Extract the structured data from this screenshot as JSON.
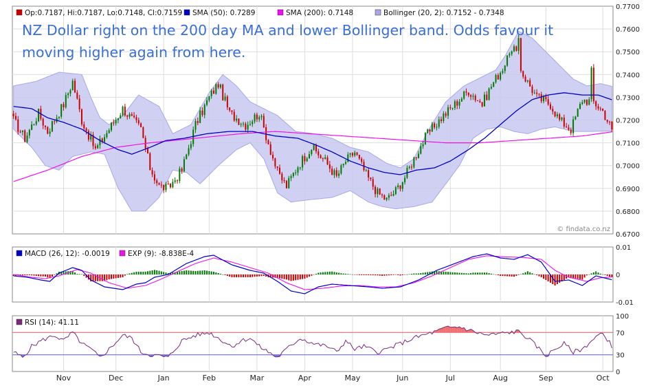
{
  "source": "© findata.co.nz",
  "annotation_lines": [
    "NZ Dollar right on the 200 day MA and lower Bollinger band. Odds favour it",
    "moving higher again from here."
  ],
  "colors": {
    "up": "#007a00",
    "down": "#cc0000",
    "sma50": "#0000c8",
    "sma200": "#ee10ee",
    "bollinger_fill": "#c8c8f0",
    "bollinger_line": "#a8a8e8",
    "annotation": "#3a6fd6",
    "rsi_line": "#7a2a7a",
    "rsi_overbought_fill": "#f07070",
    "rsi_oversold_fill": "#7070ee",
    "macd_line": "#0000c8",
    "signal_line": "#ee10ee",
    "grid": "#dddddd"
  },
  "chart_data": [
    {
      "type": "candlestick",
      "legend": [
        {
          "label": "Op:0.7187, Hi:0.7187, Lo:0.7148, Cl:0.7159",
          "color": "#cc0000"
        },
        {
          "label": "SMA (50): 0.7289",
          "color": "#0000c8"
        },
        {
          "label": "SMA (200): 0.7148",
          "color": "#ee10ee"
        },
        {
          "label": "Bollinger (20, 2): 0.7152 - 0.7348",
          "color": "#a8a8e8"
        }
      ],
      "ylim": [
        0.67,
        0.77
      ],
      "yticks": [
        "0.7700",
        "0.7600",
        "0.7500",
        "0.7400",
        "0.7300",
        "0.7200",
        "0.7100",
        "0.7000",
        "0.6900",
        "0.6800",
        "0.6700"
      ],
      "xticks": [
        "Nov",
        "Dec",
        "Jan",
        "Feb",
        "Mar",
        "Apr",
        "May",
        "Jun",
        "Jul",
        "Aug",
        "Sep",
        "Oct"
      ],
      "close_anchors": [
        [
          0,
          0.72
        ],
        [
          5,
          0.712
        ],
        [
          11,
          0.723
        ],
        [
          15,
          0.715
        ],
        [
          22,
          0.727
        ],
        [
          26,
          0.737
        ],
        [
          30,
          0.72
        ],
        [
          36,
          0.707
        ],
        [
          42,
          0.716
        ],
        [
          48,
          0.725
        ],
        [
          56,
          0.716
        ],
        [
          60,
          0.699
        ],
        [
          64,
          0.691
        ],
        [
          68,
          0.69
        ],
        [
          74,
          0.698
        ],
        [
          80,
          0.718
        ],
        [
          86,
          0.73
        ],
        [
          90,
          0.736
        ],
        [
          95,
          0.723
        ],
        [
          102,
          0.718
        ],
        [
          108,
          0.723
        ],
        [
          112,
          0.71
        ],
        [
          116,
          0.697
        ],
        [
          120,
          0.691
        ],
        [
          125,
          0.7
        ],
        [
          131,
          0.708
        ],
        [
          137,
          0.702
        ],
        [
          142,
          0.695
        ],
        [
          146,
          0.702
        ],
        [
          150,
          0.706
        ],
        [
          155,
          0.696
        ],
        [
          160,
          0.688
        ],
        [
          164,
          0.685
        ],
        [
          168,
          0.689
        ],
        [
          172,
          0.695
        ],
        [
          177,
          0.705
        ],
        [
          182,
          0.714
        ],
        [
          188,
          0.721
        ],
        [
          195,
          0.728
        ],
        [
          200,
          0.733
        ],
        [
          206,
          0.727
        ],
        [
          210,
          0.735
        ],
        [
          215,
          0.743
        ],
        [
          220,
          0.751
        ],
        [
          224,
          0.74
        ],
        [
          230,
          0.73
        ],
        [
          236,
          0.727
        ],
        [
          240,
          0.72
        ],
        [
          245,
          0.716
        ],
        [
          250,
          0.729
        ],
        [
          255,
          0.728
        ],
        [
          259,
          0.724
        ],
        [
          263,
          0.716
        ]
      ],
      "sma50_anchors": [
        [
          0,
          0.726
        ],
        [
          8,
          0.725
        ],
        [
          15,
          0.721
        ],
        [
          22,
          0.719
        ],
        [
          30,
          0.716
        ],
        [
          38,
          0.711
        ],
        [
          46,
          0.707
        ],
        [
          52,
          0.705
        ],
        [
          60,
          0.708
        ],
        [
          67,
          0.711
        ],
        [
          75,
          0.712
        ],
        [
          85,
          0.714
        ],
        [
          95,
          0.715
        ],
        [
          105,
          0.715
        ],
        [
          115,
          0.713
        ],
        [
          125,
          0.712
        ],
        [
          133,
          0.709
        ],
        [
          140,
          0.706
        ],
        [
          148,
          0.702
        ],
        [
          156,
          0.699
        ],
        [
          163,
          0.697
        ],
        [
          170,
          0.696
        ],
        [
          177,
          0.698
        ],
        [
          185,
          0.699
        ],
        [
          192,
          0.702
        ],
        [
          200,
          0.707
        ],
        [
          207,
          0.712
        ],
        [
          214,
          0.718
        ],
        [
          221,
          0.724
        ],
        [
          228,
          0.729
        ],
        [
          235,
          0.731
        ],
        [
          242,
          0.732
        ],
        [
          250,
          0.731
        ],
        [
          257,
          0.731
        ],
        [
          263,
          0.7289
        ]
      ],
      "sma200_anchors": [
        [
          0,
          0.693
        ],
        [
          15,
          0.698
        ],
        [
          30,
          0.704
        ],
        [
          45,
          0.708
        ],
        [
          60,
          0.71
        ],
        [
          80,
          0.712
        ],
        [
          100,
          0.714
        ],
        [
          115,
          0.715
        ],
        [
          130,
          0.714
        ],
        [
          145,
          0.713
        ],
        [
          160,
          0.712
        ],
        [
          175,
          0.711
        ],
        [
          190,
          0.71
        ],
        [
          205,
          0.71
        ],
        [
          220,
          0.711
        ],
        [
          235,
          0.712
        ],
        [
          250,
          0.713
        ],
        [
          263,
          0.7148
        ]
      ],
      "bb_upper_anchors": [
        [
          0,
          0.735
        ],
        [
          10,
          0.737
        ],
        [
          20,
          0.741
        ],
        [
          30,
          0.74
        ],
        [
          34,
          0.73
        ],
        [
          38,
          0.721
        ],
        [
          42,
          0.718
        ],
        [
          48,
          0.722
        ],
        [
          55,
          0.731
        ],
        [
          64,
          0.726
        ],
        [
          70,
          0.714
        ],
        [
          78,
          0.718
        ],
        [
          86,
          0.732
        ],
        [
          92,
          0.74
        ],
        [
          98,
          0.735
        ],
        [
          104,
          0.728
        ],
        [
          110,
          0.725
        ],
        [
          116,
          0.722
        ],
        [
          124,
          0.715
        ],
        [
          132,
          0.714
        ],
        [
          140,
          0.712
        ],
        [
          148,
          0.708
        ],
        [
          156,
          0.706
        ],
        [
          164,
          0.701
        ],
        [
          170,
          0.699
        ],
        [
          176,
          0.703
        ],
        [
          182,
          0.715
        ],
        [
          190,
          0.728
        ],
        [
          198,
          0.735
        ],
        [
          206,
          0.739
        ],
        [
          212,
          0.742
        ],
        [
          216,
          0.748
        ],
        [
          222,
          0.759
        ],
        [
          228,
          0.756
        ],
        [
          234,
          0.75
        ],
        [
          240,
          0.744
        ],
        [
          246,
          0.738
        ],
        [
          252,
          0.735
        ],
        [
          258,
          0.736
        ],
        [
          263,
          0.7348
        ]
      ],
      "bb_lower_anchors": [
        [
          0,
          0.716
        ],
        [
          8,
          0.708
        ],
        [
          14,
          0.7
        ],
        [
          20,
          0.698
        ],
        [
          26,
          0.704
        ],
        [
          34,
          0.706
        ],
        [
          40,
          0.705
        ],
        [
          46,
          0.69
        ],
        [
          52,
          0.68
        ],
        [
          58,
          0.68
        ],
        [
          64,
          0.686
        ],
        [
          70,
          0.698
        ],
        [
          76,
          0.697
        ],
        [
          82,
          0.692
        ],
        [
          90,
          0.7
        ],
        [
          98,
          0.707
        ],
        [
          104,
          0.71
        ],
        [
          110,
          0.703
        ],
        [
          116,
          0.688
        ],
        [
          122,
          0.684
        ],
        [
          130,
          0.685
        ],
        [
          140,
          0.686
        ],
        [
          148,
          0.689
        ],
        [
          156,
          0.684
        ],
        [
          162,
          0.682
        ],
        [
          168,
          0.681
        ],
        [
          176,
          0.682
        ],
        [
          184,
          0.684
        ],
        [
          190,
          0.692
        ],
        [
          196,
          0.7
        ],
        [
          202,
          0.712
        ],
        [
          208,
          0.716
        ],
        [
          214,
          0.717
        ],
        [
          220,
          0.715
        ],
        [
          226,
          0.714
        ],
        [
          232,
          0.716
        ],
        [
          238,
          0.717
        ],
        [
          246,
          0.715
        ],
        [
          254,
          0.715
        ],
        [
          263,
          0.7152
        ]
      ],
      "price_pivots": [
        [
          218,
          0.749
        ],
        [
          222,
          0.756
        ],
        [
          254,
          0.743
        ],
        [
          263,
          0.7148
        ]
      ]
    },
    {
      "type": "bar+line",
      "legend": [
        {
          "label": "MACD (26, 12): -0.0019",
          "color": "#0000c8"
        },
        {
          "label": "EXP (9): -8.838E-4",
          "color": "#ee10ee"
        }
      ],
      "ylim": [
        -0.01,
        0.01
      ],
      "yticks": [
        "0.01",
        "0",
        "-0.01"
      ],
      "macd_anchors": [
        [
          0,
          -0.0005
        ],
        [
          6,
          -0.001
        ],
        [
          12,
          -0.002
        ],
        [
          16,
          -0.0025
        ],
        [
          20,
          0.0005
        ],
        [
          26,
          0.0025
        ],
        [
          30,
          0.0015
        ],
        [
          34,
          -0.002
        ],
        [
          40,
          -0.0045
        ],
        [
          48,
          -0.0055
        ],
        [
          54,
          -0.0035
        ],
        [
          58,
          -0.003
        ],
        [
          62,
          -0.001
        ],
        [
          68,
          0.0
        ],
        [
          76,
          0.004
        ],
        [
          84,
          0.0065
        ],
        [
          88,
          0.007
        ],
        [
          96,
          0.0035
        ],
        [
          104,
          0.0015
        ],
        [
          110,
          0.0005
        ],
        [
          116,
          -0.0025
        ],
        [
          122,
          -0.006
        ],
        [
          128,
          -0.007
        ],
        [
          134,
          -0.0045
        ],
        [
          140,
          -0.0035
        ],
        [
          148,
          -0.004
        ],
        [
          156,
          -0.0045
        ],
        [
          162,
          -0.005
        ],
        [
          170,
          -0.0045
        ],
        [
          178,
          -0.002
        ],
        [
          186,
          0.0015
        ],
        [
          194,
          0.004
        ],
        [
          202,
          0.0065
        ],
        [
          208,
          0.0075
        ],
        [
          214,
          0.006
        ],
        [
          220,
          0.0055
        ],
        [
          226,
          0.0072
        ],
        [
          232,
          0.0045
        ],
        [
          238,
          -0.0025
        ],
        [
          244,
          -0.002
        ],
        [
          250,
          -0.004
        ],
        [
          256,
          -0.0005
        ],
        [
          263,
          -0.0019
        ]
      ],
      "signal_anchors": [
        [
          0,
          0.0
        ],
        [
          8,
          -0.001
        ],
        [
          14,
          -0.0015
        ],
        [
          20,
          -0.0005
        ],
        [
          28,
          0.0018
        ],
        [
          34,
          0.0005
        ],
        [
          42,
          -0.003
        ],
        [
          50,
          -0.005
        ],
        [
          58,
          -0.004
        ],
        [
          64,
          -0.002
        ],
        [
          72,
          0.001
        ],
        [
          80,
          0.004
        ],
        [
          88,
          0.006
        ],
        [
          96,
          0.0045
        ],
        [
          104,
          0.0025
        ],
        [
          112,
          0.0005
        ],
        [
          120,
          -0.003
        ],
        [
          128,
          -0.0055
        ],
        [
          136,
          -0.005
        ],
        [
          144,
          -0.0042
        ],
        [
          152,
          -0.004
        ],
        [
          160,
          -0.0045
        ],
        [
          168,
          -0.0045
        ],
        [
          176,
          -0.003
        ],
        [
          184,
          -0.0005
        ],
        [
          192,
          0.0025
        ],
        [
          200,
          0.0055
        ],
        [
          208,
          0.0068
        ],
        [
          216,
          0.0064
        ],
        [
          224,
          0.0062
        ],
        [
          232,
          0.0055
        ],
        [
          238,
          0.0015
        ],
        [
          244,
          -0.001
        ],
        [
          252,
          -0.0025
        ],
        [
          258,
          -0.0012
        ],
        [
          263,
          -0.0009
        ]
      ]
    },
    {
      "type": "line",
      "legend": [
        {
          "label": "RSI (14): 41.11",
          "color": "#7a2a7a"
        }
      ],
      "ylim": [
        0,
        100
      ],
      "yticks": [
        "100",
        "70",
        "30",
        "0"
      ],
      "guide_levels": [
        70,
        30
      ],
      "rsi_anchors": [
        [
          0,
          35
        ],
        [
          4,
          25
        ],
        [
          8,
          45
        ],
        [
          12,
          55
        ],
        [
          18,
          65
        ],
        [
          22,
          55
        ],
        [
          26,
          70
        ],
        [
          30,
          50
        ],
        [
          34,
          40
        ],
        [
          38,
          25
        ],
        [
          42,
          40
        ],
        [
          48,
          65
        ],
        [
          52,
          60
        ],
        [
          56,
          35
        ],
        [
          60,
          30
        ],
        [
          64,
          28
        ],
        [
          68,
          25
        ],
        [
          74,
          55
        ],
        [
          80,
          65
        ],
        [
          86,
          70
        ],
        [
          90,
          60
        ],
        [
          96,
          45
        ],
        [
          100,
          55
        ],
        [
          104,
          60
        ],
        [
          108,
          45
        ],
        [
          112,
          35
        ],
        [
          116,
          25
        ],
        [
          120,
          40
        ],
        [
          126,
          60
        ],
        [
          132,
          50
        ],
        [
          138,
          45
        ],
        [
          142,
          35
        ],
        [
          146,
          55
        ],
        [
          150,
          40
        ],
        [
          154,
          45
        ],
        [
          160,
          35
        ],
        [
          164,
          40
        ],
        [
          170,
          50
        ],
        [
          176,
          60
        ],
        [
          180,
          65
        ],
        [
          186,
          72
        ],
        [
          190,
          78
        ],
        [
          196,
          80
        ],
        [
          202,
          72
        ],
        [
          208,
          65
        ],
        [
          214,
          68
        ],
        [
          218,
          70
        ],
        [
          222,
          72
        ],
        [
          226,
          60
        ],
        [
          230,
          45
        ],
        [
          234,
          28
        ],
        [
          238,
          40
        ],
        [
          242,
          50
        ],
        [
          246,
          35
        ],
        [
          250,
          40
        ],
        [
          254,
          55
        ],
        [
          258,
          68
        ],
        [
          262,
          55
        ],
        [
          263,
          41
        ]
      ]
    }
  ]
}
